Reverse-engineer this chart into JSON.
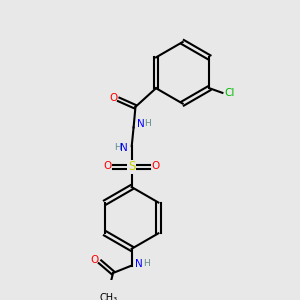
{
  "bg_color": "#e8e8e8",
  "bond_color": "#000000",
  "bond_lw": 1.5,
  "atom_colors": {
    "N": "#0000FF",
    "O": "#FF0000",
    "S": "#CCCC00",
    "Cl": "#00BB00",
    "H": "#5c8a8a",
    "C": "#000000"
  },
  "font_size": 7.5,
  "font_size_small": 6.5
}
